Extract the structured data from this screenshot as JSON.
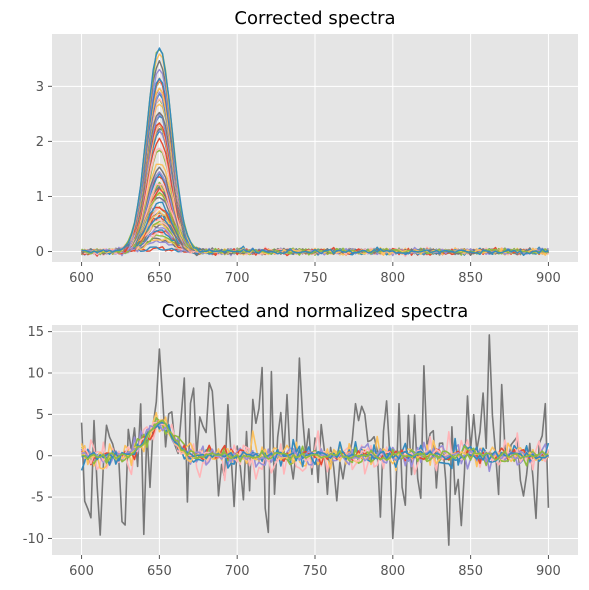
{
  "chart_data": [
    {
      "type": "line",
      "title": "Corrected spectra",
      "xlabel": "",
      "ylabel": "",
      "xlim": [
        581,
        919
      ],
      "ylim": [
        -0.19,
        3.95
      ],
      "xticks": [
        600,
        650,
        700,
        750,
        800,
        850,
        900
      ],
      "yticks": [
        0,
        1,
        2,
        3
      ],
      "grid": true,
      "legend": "none",
      "x_range": [
        600,
        900
      ],
      "peak": {
        "center": 650,
        "sigma": 8
      },
      "description_of_series": "about 70 gaussian-peaked spectra centered at 650 with amplitudes from 0.05 to 3.72 plus low noise",
      "max_amplitude": 3.72,
      "series_count": 70
    },
    {
      "type": "line",
      "title": "Corrected and normalized spectra",
      "xlabel": "",
      "ylabel": "",
      "xlim": [
        581,
        919
      ],
      "ylim": [
        -12,
        15.8
      ],
      "xticks": [
        600,
        650,
        700,
        750,
        800,
        850,
        900
      ],
      "yticks": [
        -10,
        -5,
        0,
        5,
        10,
        15
      ],
      "grid": true,
      "legend": "none",
      "x_range": [
        600,
        900
      ],
      "normalized_peak": 4.0,
      "noisy_series_range": [
        -10.8,
        14.6
      ],
      "series_count": 12
    }
  ],
  "colors": [
    "#E24A33",
    "#348ABD",
    "#988ED5",
    "#777777",
    "#FBC15E",
    "#8EBA42",
    "#FFB5B8"
  ]
}
